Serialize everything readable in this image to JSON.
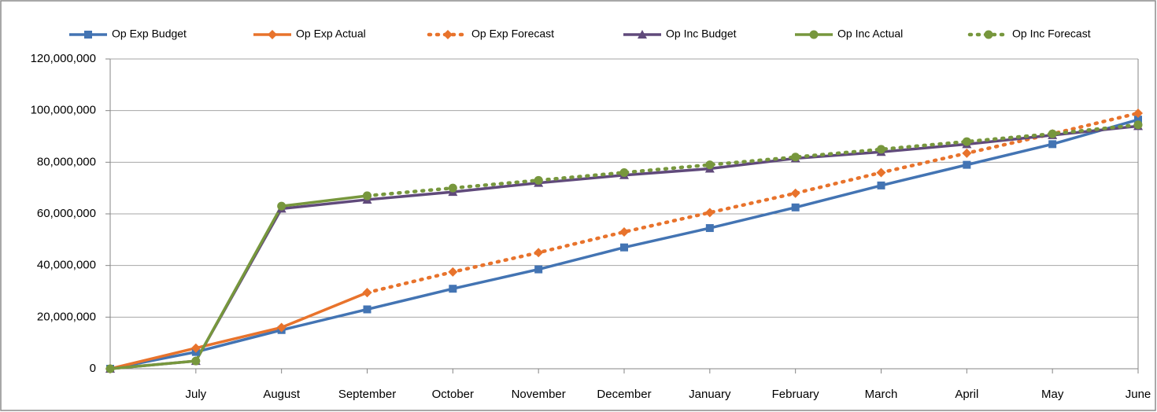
{
  "chart_data": {
    "type": "line",
    "categories": [
      null,
      "July",
      "August",
      "September",
      "October",
      "November",
      "December",
      "January",
      "February",
      "March",
      "April",
      "May",
      "June"
    ],
    "series": [
      {
        "name": "Op Exp Budget",
        "color": "#4374b3",
        "marker": "square",
        "line_style": "solid",
        "values": [
          0,
          6500000,
          15000000,
          23000000,
          31000000,
          38500000,
          47000000,
          54500000,
          62500000,
          71000000,
          79000000,
          87000000,
          96500000
        ]
      },
      {
        "name": "Op Exp Actual",
        "color": "#e8732c",
        "marker": "diamond",
        "line_style": "solid",
        "values": [
          0,
          8000000,
          16000000,
          29500000,
          null,
          null,
          null,
          null,
          null,
          null,
          null,
          null,
          null
        ]
      },
      {
        "name": "Op Exp Forecast",
        "color": "#e8732c",
        "marker": "diamond",
        "line_style": "dotted",
        "values": [
          null,
          null,
          null,
          29500000,
          37500000,
          45000000,
          53000000,
          60500000,
          68000000,
          76000000,
          83500000,
          91000000,
          99000000
        ]
      },
      {
        "name": "Op Inc Budget",
        "color": "#604a7b",
        "marker": "triangle",
        "line_style": "solid",
        "values": [
          0,
          3000000,
          62000000,
          65500000,
          68500000,
          72000000,
          75000000,
          77500000,
          81500000,
          84000000,
          87000000,
          90500000,
          94000000
        ]
      },
      {
        "name": "Op Inc Actual",
        "color": "#77973d",
        "marker": "circle",
        "line_style": "solid",
        "values": [
          0,
          3000000,
          63000000,
          67000000,
          null,
          null,
          null,
          null,
          null,
          null,
          null,
          null,
          null
        ]
      },
      {
        "name": "Op Inc Forecast",
        "color": "#77973d",
        "marker": "circle",
        "line_style": "dotted",
        "values": [
          null,
          null,
          null,
          67000000,
          70000000,
          73000000,
          76000000,
          79000000,
          82000000,
          85000000,
          88000000,
          91000000,
          94500000
        ]
      }
    ],
    "ylim": [
      0,
      120000000
    ],
    "yticks": [
      0,
      {
        "value": 20000000,
        "label": "20,000,000"
      },
      {
        "value": 40000000,
        "label": "40,000,000"
      },
      {
        "value": 60000000,
        "label": "60,000,000"
      },
      {
        "value": 80000000,
        "label": "80,000,000"
      },
      {
        "value": 100000000,
        "label": "100,000,000"
      },
      {
        "value": 120000000,
        "label": "120,000,000"
      }
    ],
    "grid": true,
    "legend": "top"
  }
}
